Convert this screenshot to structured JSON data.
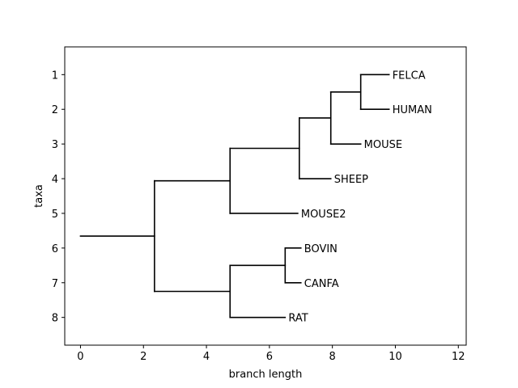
{
  "chart_data": {
    "type": "dendrogram",
    "xlabel": "branch length",
    "ylabel": "taxa",
    "xlim": [
      -0.5,
      12.25
    ],
    "ylim": [
      8.8,
      0.2
    ],
    "xticks": [
      0,
      2,
      4,
      6,
      8,
      10,
      12
    ],
    "yticks": [
      1,
      2,
      3,
      4,
      5,
      6,
      7,
      8
    ],
    "grid": false,
    "leaves": [
      {
        "name": "FELCA",
        "y": 1,
        "x": 9.8
      },
      {
        "name": "HUMAN",
        "y": 2,
        "x": 9.8
      },
      {
        "name": "MOUSE",
        "y": 3,
        "x": 8.9
      },
      {
        "name": "SHEEP",
        "y": 4,
        "x": 7.95
      },
      {
        "name": "MOUSE2",
        "y": 5,
        "x": 6.9
      },
      {
        "name": "BOVIN",
        "y": 6,
        "x": 7.0
      },
      {
        "name": "CANFA",
        "y": 7,
        "x": 7.0
      },
      {
        "name": "RAT",
        "y": 8,
        "x": 6.5
      }
    ],
    "internal_nodes": [
      {
        "id": "n_felca_human",
        "x": 8.9,
        "children": [
          "FELCA",
          "HUMAN"
        ]
      },
      {
        "id": "n_fhm",
        "x": 7.95,
        "children": [
          "n_felca_human",
          "MOUSE"
        ]
      },
      {
        "id": "n_fhms",
        "x": 6.95,
        "children": [
          "n_fhm",
          "SHEEP"
        ]
      },
      {
        "id": "n_upper",
        "x": 4.75,
        "children": [
          "n_fhms",
          "MOUSE2"
        ]
      },
      {
        "id": "n_bc",
        "x": 6.5,
        "children": [
          "BOVIN",
          "CANFA"
        ]
      },
      {
        "id": "n_lower",
        "x": 4.75,
        "children": [
          "n_bc",
          "RAT"
        ]
      },
      {
        "id": "n_root",
        "x": 2.35,
        "children": [
          "n_upper",
          "n_lower"
        ]
      }
    ],
    "root_stem_start": 0
  }
}
